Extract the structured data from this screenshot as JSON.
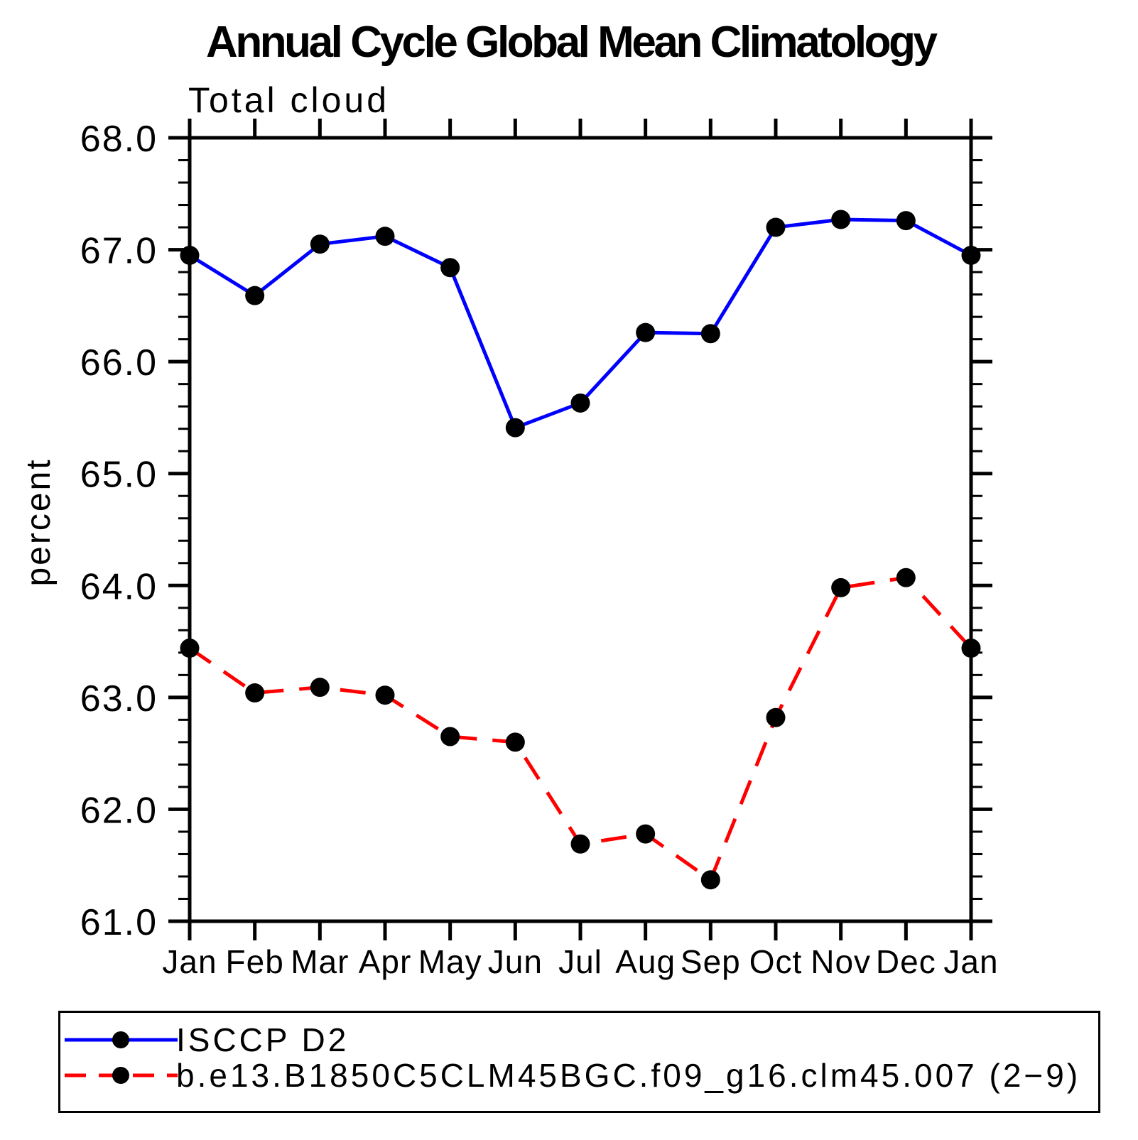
{
  "chart_data": {
    "type": "line",
    "title": "Annual Cycle Global Mean Climatology",
    "subtitle": "Total cloud",
    "ylabel": "percent",
    "categories": [
      "Jan",
      "Feb",
      "Mar",
      "Apr",
      "May",
      "Jun",
      "Jul",
      "Aug",
      "Sep",
      "Oct",
      "Nov",
      "Dec",
      "Jan"
    ],
    "ylim": [
      61.0,
      68.0
    ],
    "ytick_interval": 1.0,
    "yminor_interval": 0.2,
    "ytick_labels": [
      "61.0",
      "62.0",
      "63.0",
      "64.0",
      "65.0",
      "66.0",
      "67.0",
      "68.0"
    ],
    "grid": false,
    "legend_position": "bottom-box",
    "series": [
      {
        "name": "ISCCP D2",
        "color": "#0000ff",
        "line_style": "solid",
        "marker": "black-dot",
        "values": [
          66.95,
          66.59,
          67.05,
          67.12,
          66.84,
          65.41,
          65.63,
          66.26,
          66.25,
          67.2,
          67.27,
          67.26,
          66.95
        ]
      },
      {
        "name": "b.e13.B1850C5CLM45BGC.f09_g16.clm45.007 (2−9)",
        "color": "#ff0000",
        "line_style": "dashed",
        "marker": "black-dot",
        "values": [
          63.44,
          63.04,
          63.09,
          63.02,
          62.65,
          62.6,
          61.69,
          61.78,
          61.37,
          62.82,
          63.98,
          64.07,
          63.44
        ]
      }
    ]
  },
  "colors": {
    "axis": "#000000",
    "text": "#000000",
    "background": "#ffffff"
  }
}
